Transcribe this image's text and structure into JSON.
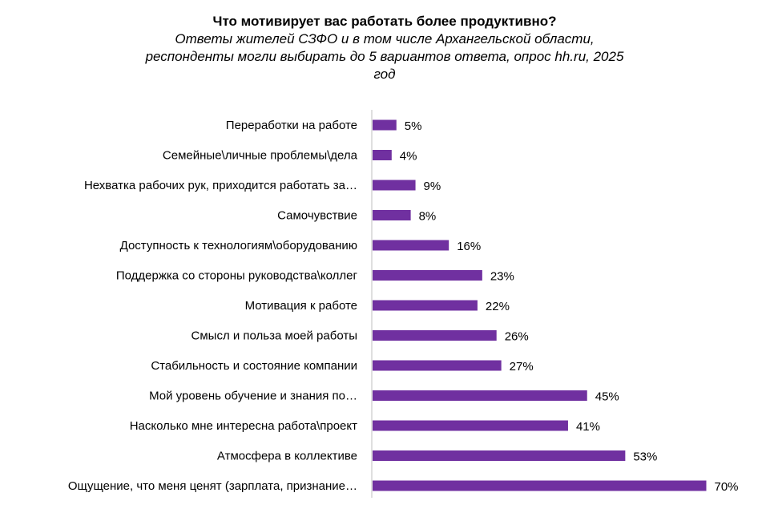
{
  "chart_data": {
    "type": "bar",
    "orientation": "horizontal",
    "title": "Что мотивирует вас работать более продуктивно?",
    "subtitle": [
      "Ответы жителей СЗФО и в том числе Архангельской области,",
      "респонденты могли выбирать до 5 вариантов ответа, опрос hh.ru, 2025",
      "год"
    ],
    "categories": [
      "Переработки на работе",
      "Семейные\\личные проблемы\\дела",
      "Нехватка рабочих рук, приходится работать за…",
      "Самочувствие",
      "Доступность к технологиям\\оборудованию",
      "Поддержка со стороны руководства\\коллег",
      "Мотивация к работе",
      "Смысл и польза моей работы",
      "Стабильность и состояние компании",
      "Мой уровень обучение и знания по…",
      "Насколько мне интересна работа\\проект",
      "Атмосфера в коллективе",
      "Ощущение, что меня ценят (зарплата, признание…"
    ],
    "values": [
      5,
      4,
      9,
      8,
      16,
      23,
      22,
      26,
      27,
      45,
      41,
      53,
      70
    ],
    "value_labels": [
      "5%",
      "4%",
      "9%",
      "8%",
      "16%",
      "23%",
      "22%",
      "26%",
      "27%",
      "45%",
      "41%",
      "53%",
      "70%"
    ],
    "unit": "%",
    "xlim": [
      0,
      70
    ],
    "bar_color": "#7030a0",
    "axis_color": "#bfbfbf",
    "grid": false,
    "legend": "none"
  }
}
